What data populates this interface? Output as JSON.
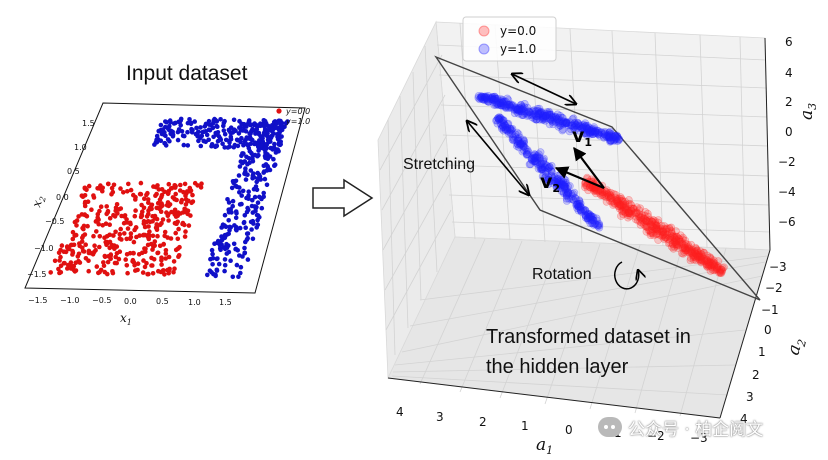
{
  "chart_data": [
    {
      "type": "scatter",
      "title": "Input dataset",
      "xlabel": "x1",
      "ylabel": "x2",
      "xlim": [
        -1.8,
        1.9
      ],
      "ylim": [
        -1.8,
        1.8
      ],
      "xticks": [
        "−1.5",
        "−1.0",
        "−0.5",
        "0.0",
        "0.5",
        "1.0",
        "1.5"
      ],
      "yticks": [
        "1.5",
        "1.0",
        "0.5",
        "0.0",
        "−0.5",
        "−1.0",
        "−1.5"
      ],
      "legend": {
        "position": "top-right",
        "entries": [
          "y=0.0",
          "y=1.0"
        ]
      },
      "series": [
        {
          "name": "y=0.0",
          "color": "#e01010",
          "region": "square",
          "x_range": [
            -1.5,
            0.5
          ],
          "y_range": [
            -1.5,
            0.3
          ]
        },
        {
          "name": "y=1.0",
          "color": "#1010c8",
          "region": "L-shape",
          "top_arm": {
            "x_range": [
              -0.6,
              1.65
            ],
            "y_range": [
              1.0,
              1.55
            ]
          },
          "right_arm": {
            "x_range": [
              1.0,
              1.65
            ],
            "y_range": [
              -1.5,
              1.55
            ]
          }
        }
      ]
    },
    {
      "type": "scatter",
      "title": "Transformed dataset in the hidden layer",
      "xlabel": "a1",
      "ylabel": "a2",
      "zlabel": "a3",
      "a1_ticks": [
        "4",
        "3",
        "2",
        "1",
        "0",
        "−1",
        "−2",
        "−3"
      ],
      "a2_ticks": [
        "−3",
        "−2",
        "−1",
        "0",
        "1",
        "2",
        "3",
        "4"
      ],
      "a3_ticks": [
        "6",
        "4",
        "2",
        "0",
        "−2",
        "−4",
        "−6"
      ],
      "legend": {
        "position": "top-left",
        "entries": [
          "y=0.0",
          "y=1.0"
        ]
      },
      "series": [
        {
          "name": "y=0.0",
          "color": "#ff2020"
        },
        {
          "name": "y=1.0",
          "color": "#2020ff"
        }
      ]
    }
  ],
  "labels": {
    "input_title": "Input dataset",
    "stretching": "Stretching",
    "rotation": "Rotation",
    "transformed_line1": "Transformed dataset in",
    "transformed_line2": "the hidden layer",
    "v1": "v",
    "v1_sub": "1",
    "v2": "v",
    "v2_sub": "2",
    "legend_a": "y=0.0",
    "legend_b": "y=1.0",
    "legend_small_a": "y=0.0",
    "legend_small_b": "y=1.0"
  },
  "axis_letters": {
    "x1": "x",
    "x1_sub": "1",
    "x2": "x",
    "x2_sub": "2",
    "a1": "a",
    "a1_sub": "1",
    "a2": "a",
    "a2_sub": "2",
    "a3": "a",
    "a3_sub": "3"
  },
  "watermark": {
    "text": "公众号 · 柏企阅文",
    "icon": "wechat-icon"
  },
  "colors": {
    "red": "#e01010",
    "blue": "#1010c8"
  }
}
